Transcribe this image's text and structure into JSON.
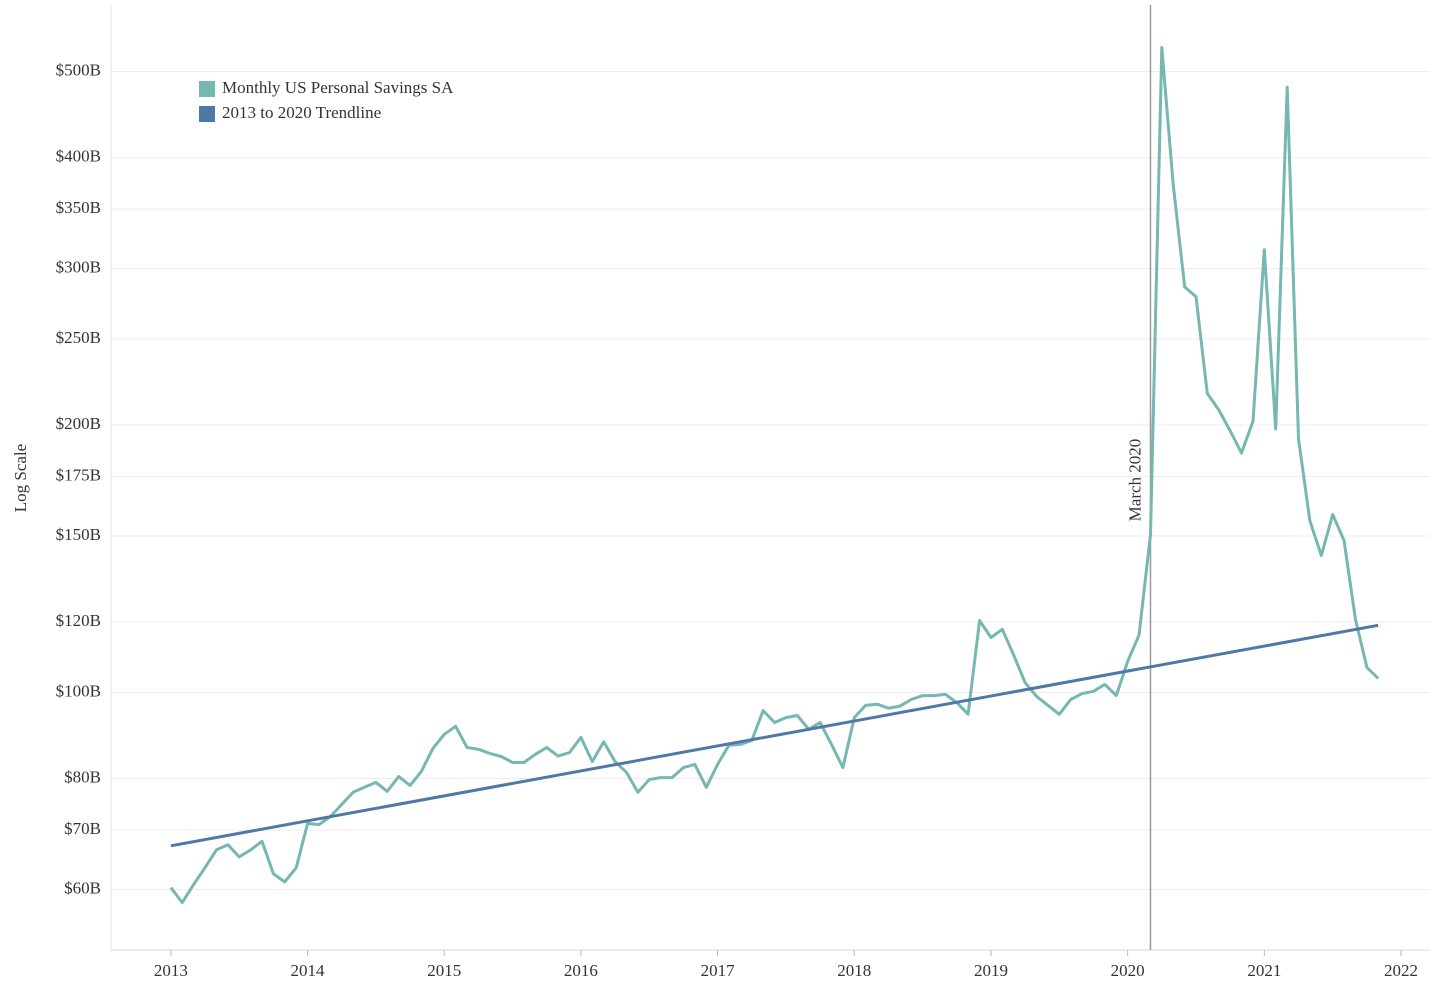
{
  "chart_data": {
    "type": "line",
    "y_label": "Log Scale",
    "log_scale": true,
    "grid": true,
    "legend": "top-left",
    "xlim": [
      2012.562,
      2022.212
    ],
    "xticks": [
      2013,
      2014,
      2015,
      2016,
      2017,
      2018,
      2019,
      2020,
      2021,
      2022
    ],
    "ylim": [
      51.3,
      594
    ],
    "yticks": [
      {
        "value": 60,
        "label": "$60B"
      },
      {
        "value": 70,
        "label": "$70B"
      },
      {
        "value": 80,
        "label": "$80B"
      },
      {
        "value": 100,
        "label": "$100B"
      },
      {
        "value": 120,
        "label": "$120B"
      },
      {
        "value": 150,
        "label": "$150B"
      },
      {
        "value": 175,
        "label": "$175B"
      },
      {
        "value": 200,
        "label": "$200B"
      },
      {
        "value": 250,
        "label": "$250B"
      },
      {
        "value": 300,
        "label": "$300B"
      },
      {
        "value": 350,
        "label": "$350B"
      },
      {
        "value": 400,
        "label": "$400B"
      },
      {
        "value": 500,
        "label": "$500B"
      }
    ],
    "annotations": [
      {
        "text": "March 2020",
        "x": 2020.167
      }
    ],
    "series": [
      {
        "name": "Monthly US Personal Savings SA",
        "color": "#76b7b2",
        "x": [
          2013,
          2013.083,
          2013.167,
          2013.25,
          2013.333,
          2013.417,
          2013.5,
          2013.583,
          2013.667,
          2013.75,
          2013.833,
          2013.917,
          2014,
          2014.083,
          2014.167,
          2014.25,
          2014.333,
          2014.417,
          2014.5,
          2014.583,
          2014.667,
          2014.75,
          2014.833,
          2014.917,
          2015,
          2015.083,
          2015.167,
          2015.25,
          2015.333,
          2015.417,
          2015.5,
          2015.583,
          2015.667,
          2015.75,
          2015.833,
          2015.917,
          2016,
          2016.083,
          2016.167,
          2016.25,
          2016.333,
          2016.417,
          2016.5,
          2016.583,
          2016.667,
          2016.75,
          2016.833,
          2016.917,
          2017,
          2017.083,
          2017.167,
          2017.25,
          2017.333,
          2017.417,
          2017.5,
          2017.583,
          2017.667,
          2017.75,
          2017.833,
          2017.917,
          2018,
          2018.083,
          2018.167,
          2018.25,
          2018.333,
          2018.417,
          2018.5,
          2018.583,
          2018.667,
          2018.75,
          2018.833,
          2018.917,
          2019,
          2019.083,
          2019.167,
          2019.25,
          2019.333,
          2019.417,
          2019.5,
          2019.583,
          2019.667,
          2019.75,
          2019.833,
          2019.917,
          2020,
          2020.083,
          2020.167,
          2020.25,
          2020.333,
          2020.417,
          2020.5,
          2020.583,
          2020.667,
          2020.75,
          2020.833,
          2020.917,
          2021,
          2021.083,
          2021.167,
          2021.25,
          2021.333,
          2021.417,
          2021.5,
          2021.583,
          2021.667,
          2021.75,
          2021.833
        ],
        "values": [
          60.3,
          58.0,
          60.8,
          63.5,
          66.5,
          67.4,
          65.3,
          66.5,
          68.0,
          62.5,
          61.2,
          63.5,
          71.2,
          71.0,
          72.5,
          74.8,
          77.2,
          78.2,
          79.2,
          77.4,
          80.4,
          78.6,
          81.5,
          86.5,
          89.7,
          91.6,
          86.7,
          86.3,
          85.4,
          84.7,
          83.4,
          83.4,
          85.2,
          86.7,
          84.8,
          85.6,
          89.0,
          83.6,
          88.0,
          83.6,
          81.3,
          77.2,
          79.8,
          80.2,
          80.2,
          82.3,
          83.0,
          78.2,
          83.0,
          87.2,
          87.4,
          88.3,
          95.4,
          92.5,
          93.7,
          94.2,
          90.9,
          92.5,
          87.4,
          82.3,
          93.7,
          96.7,
          97.0,
          96.0,
          96.5,
          98.2,
          99.2,
          99.2,
          99.5,
          97.4,
          94.5,
          120.5,
          115.3,
          117.8,
          110.1,
          102.6,
          99.0,
          96.7,
          94.5,
          98.2,
          99.7,
          100.3,
          102.1,
          99.2,
          108.4,
          116,
          150.6,
          532,
          373,
          286,
          279,
          217,
          208,
          197,
          186,
          202,
          315,
          198,
          480,
          193,
          156,
          142.6,
          158.6,
          148.3,
          120.8,
          106.7,
          103.7
        ]
      },
      {
        "name": "2013 to 2020 Trendline",
        "color": "#4e79a7",
        "x": [
          2013,
          2021.833
        ],
        "values": [
          67.2,
          119.0
        ]
      }
    ]
  }
}
